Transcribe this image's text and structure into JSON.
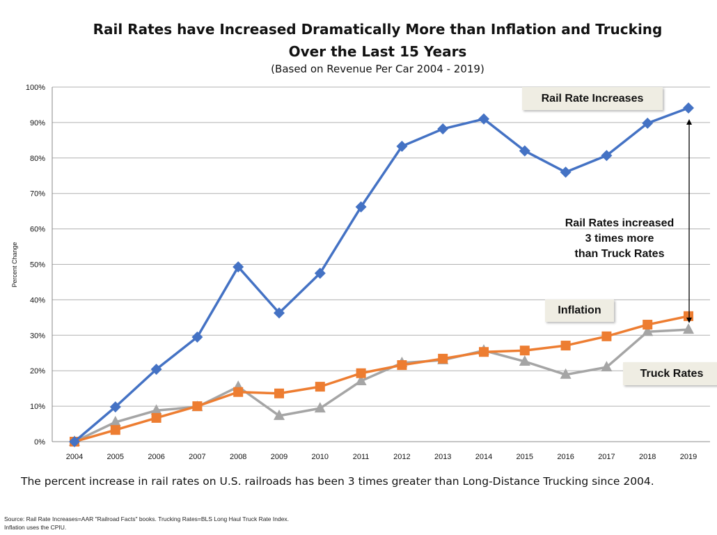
{
  "chart_data": {
    "type": "line",
    "title": "Rail Rates have Increased Dramatically More than Inflation and Trucking",
    "title_line2": "Over the Last 15 Years",
    "subtitle": "(Based on Revenue Per Car 2004 - 2019)",
    "ylabel": "Percent Change",
    "xlabel": "",
    "ylim": [
      0,
      100
    ],
    "yticks": [
      "0%",
      "10%",
      "20%",
      "30%",
      "40%",
      "50%",
      "60%",
      "70%",
      "80%",
      "90%",
      "100%"
    ],
    "grid": true,
    "categories": [
      "2004",
      "2005",
      "2006",
      "2007",
      "2008",
      "2009",
      "2010",
      "2011",
      "2012",
      "2013",
      "2014",
      "2015",
      "2016",
      "2017",
      "2018",
      "2019"
    ],
    "series": [
      {
        "name": "Rail Rate Increases",
        "color": "#4472c4",
        "marker": "diamond",
        "values": [
          0,
          9.8,
          20.4,
          29.5,
          49.3,
          36.3,
          47.5,
          66.2,
          83.3,
          88.2,
          91.0,
          82.0,
          76.0,
          80.7,
          89.8,
          94.1
        ]
      },
      {
        "name": "Inflation",
        "color": "#ed7d31",
        "marker": "square",
        "values": [
          0,
          3.3,
          6.7,
          10.0,
          14.0,
          13.6,
          15.5,
          19.3,
          21.6,
          23.4,
          25.3,
          25.7,
          27.1,
          29.7,
          33.0,
          35.4
        ]
      },
      {
        "name": "Truck Rates",
        "color": "#a5a5a5",
        "marker": "triangle",
        "values": [
          0,
          5.5,
          8.8,
          9.8,
          15.5,
          7.3,
          9.4,
          17.1,
          22.2,
          23.0,
          25.7,
          22.6,
          18.9,
          21.0,
          31.0,
          31.6
        ]
      }
    ],
    "annotation": [
      "Rail Rates increased",
      "3 times more",
      "than Truck Rates"
    ],
    "footnote": "The percent increase in rail rates on U.S. railroads has been 3 times greater than Long-Distance Trucking since 2004.",
    "source": [
      "Source: Rail Rate Increases=AAR \"Railroad Facts\" books. Trucking Rates=BLS Long Haul Truck Rate Index.",
      "Inflation uses the CPIU."
    ]
  }
}
